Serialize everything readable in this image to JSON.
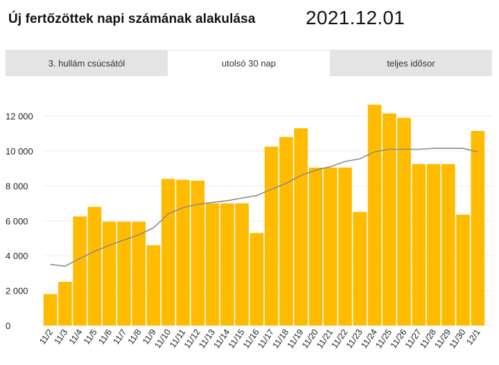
{
  "header": {
    "title": "Új fertőzöttek napi számának alakulása",
    "date": "2021.12.01"
  },
  "tabs": [
    {
      "label": "3. hullám csúcsától",
      "active": false
    },
    {
      "label": "utolsó 30 nap",
      "active": true
    },
    {
      "label": "teljes idősor",
      "active": false
    }
  ],
  "chart_data": {
    "type": "bar",
    "categories": [
      "11/2",
      "11/3",
      "11/4",
      "11/5",
      "11/6",
      "11/7",
      "11/8",
      "11/9",
      "11/10",
      "11/11",
      "11/12",
      "11/13",
      "11/14",
      "11/15",
      "11/16",
      "11/17",
      "11/18",
      "11/19",
      "11/20",
      "11/21",
      "11/22",
      "11/23",
      "11/24",
      "11/25",
      "11/26",
      "11/27",
      "11/28",
      "11/29",
      "11/30",
      "12/1"
    ],
    "series": [
      {
        "type": "bar",
        "values": [
          1800,
          2500,
          6250,
          6800,
          5950,
          5950,
          5950,
          4600,
          8400,
          8350,
          8300,
          7000,
          7000,
          7000,
          5300,
          10250,
          10800,
          11300,
          9050,
          9050,
          9050,
          6500,
          12650,
          12150,
          11900,
          9250,
          9250,
          9250,
          6350,
          11150
        ],
        "color": "#FFBB00"
      },
      {
        "type": "line",
        "values": [
          3500,
          3400,
          3850,
          4250,
          4600,
          4900,
          5200,
          5600,
          6400,
          6750,
          6950,
          7050,
          7150,
          7300,
          7450,
          7800,
          8150,
          8600,
          8900,
          9100,
          9400,
          9550,
          9950,
          10100,
          10100,
          10100,
          10150,
          10150,
          10150,
          9950
        ],
        "color": "#8c8c8c"
      }
    ],
    "yticks": [
      0,
      2000,
      4000,
      6000,
      8000,
      10000,
      12000
    ],
    "ytick_labels": [
      "0",
      "2 000",
      "4 000",
      "6 000",
      "8 000",
      "10 000",
      "12 000"
    ],
    "ylim": [
      0,
      13500
    ],
    "title": "Új fertőzöttek napi számának alakulása",
    "xlabel": "",
    "ylabel": "",
    "grid": true
  }
}
